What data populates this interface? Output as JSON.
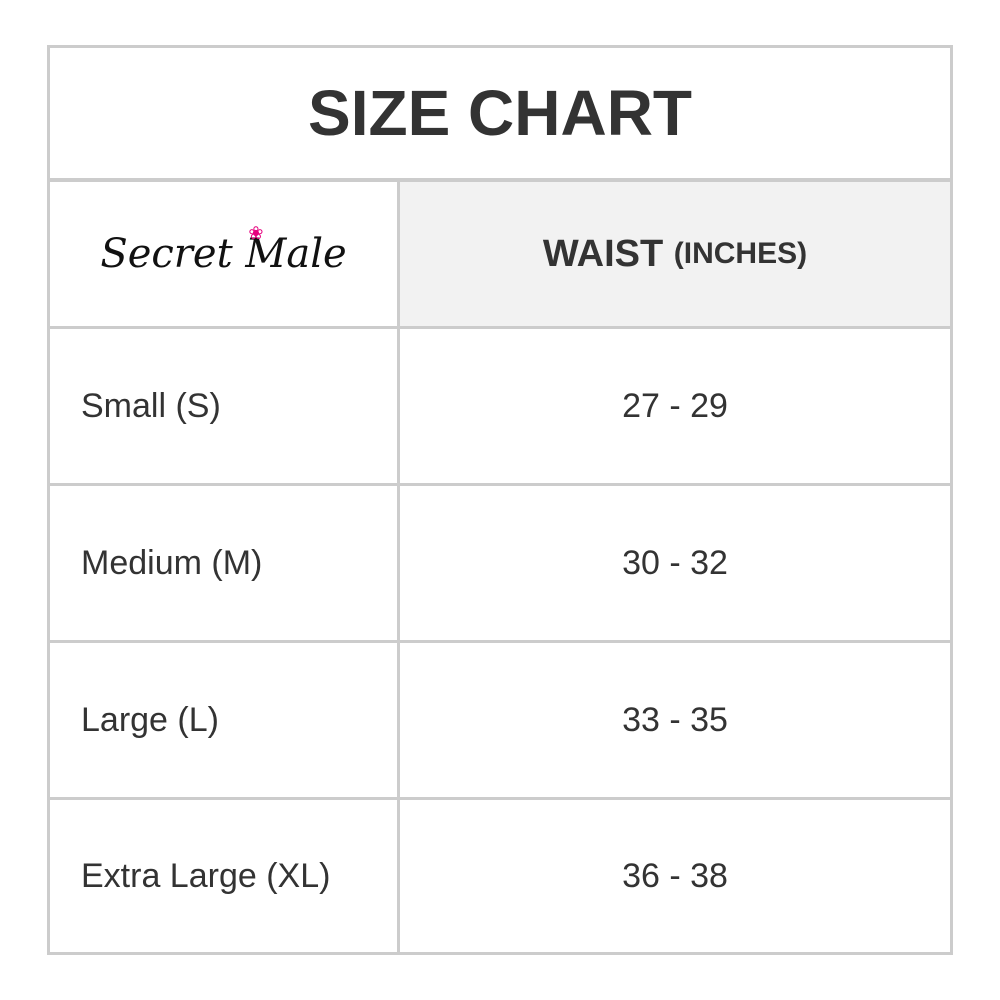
{
  "title": "SIZE CHART",
  "logo": {
    "text": "Secret Male",
    "accent_color": "#e6007e"
  },
  "header": {
    "measure": "WAIST",
    "unit": "(INCHES)"
  },
  "rows": [
    {
      "size": "Small (S)",
      "waist": "27 - 29"
    },
    {
      "size": "Medium (M)",
      "waist": "30 - 32"
    },
    {
      "size": "Large (L)",
      "waist": "33 - 35"
    },
    {
      "size": "Extra Large (XL)",
      "waist": "36 - 38"
    }
  ]
}
